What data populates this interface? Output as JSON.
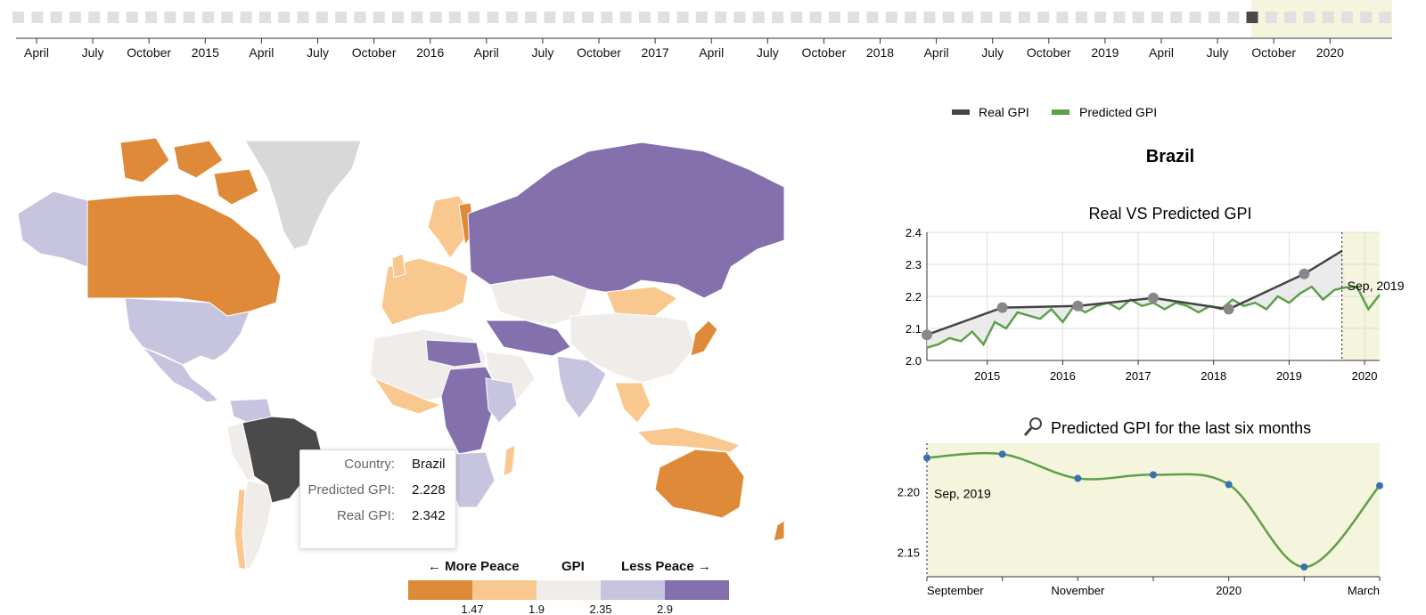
{
  "timeline": {
    "tick_labels": [
      "April",
      "July",
      "October",
      "2015",
      "April",
      "July",
      "October",
      "2016",
      "April",
      "July",
      "October",
      "2017",
      "April",
      "July",
      "October",
      "2018",
      "April",
      "July",
      "October",
      "2019",
      "April",
      "July",
      "October",
      "2020"
    ]
  },
  "map": {
    "tooltip": {
      "country_label": "Country:",
      "country": "Brazil",
      "predicted_label": "Predicted GPI:",
      "predicted": "2.228",
      "real_label": "Real GPI:",
      "real": "2.342"
    },
    "legend": {
      "more_peace": "← More Peace",
      "title": "GPI",
      "less_peace": "Less Peace →",
      "colors": [
        "#de8a38",
        "#f9c88f",
        "#f0ecea",
        "#c7c4e0",
        "#8370ad"
      ],
      "tick_labels": [
        "1.47",
        "1.9",
        "2.35",
        "2.9"
      ]
    },
    "colors": {
      "highlight": "#4a4a4a",
      "no_data": "#d8d8d8"
    }
  },
  "legend": {
    "real": "Real GPI",
    "predicted": "Predicted GPI"
  },
  "panel": {
    "country": "Brazil",
    "chart1_title": "Real VS Predicted GPI",
    "chart2_title": "Predicted GPI for the last six months",
    "chart2_icon": "magnifier-icon"
  },
  "chart_data": [
    {
      "type": "line",
      "title": "Real VS Predicted GPI",
      "xlabel": "",
      "ylabel": "",
      "x_ticks": [
        "2015",
        "2016",
        "2017",
        "2018",
        "2019",
        "2020"
      ],
      "y_ticks": [
        "2.0",
        "2.1",
        "2.2",
        "2.3",
        "2.4"
      ],
      "ylim": [
        2.0,
        2.4
      ],
      "xlim": [
        2014.2,
        2020.2
      ],
      "grid": true,
      "annotation": "Sep, 2019",
      "series": [
        {
          "name": "Real GPI",
          "color": "#444444",
          "x": [
            2014.2,
            2015.2,
            2016.2,
            2017.2,
            2018.2,
            2019.2,
            2019.7
          ],
          "y": [
            2.08,
            2.165,
            2.17,
            2.195,
            2.16,
            2.27,
            2.342
          ]
        },
        {
          "name": "Predicted GPI",
          "color": "#5da04a",
          "x": [
            2014.2,
            2014.35,
            2014.5,
            2014.65,
            2014.8,
            2014.95,
            2015.1,
            2015.25,
            2015.4,
            2015.55,
            2015.7,
            2015.85,
            2016.0,
            2016.15,
            2016.3,
            2016.45,
            2016.6,
            2016.75,
            2016.9,
            2017.05,
            2017.2,
            2017.35,
            2017.5,
            2017.65,
            2017.8,
            2017.95,
            2018.1,
            2018.25,
            2018.4,
            2018.55,
            2018.7,
            2018.85,
            2019.0,
            2019.15,
            2019.3,
            2019.45,
            2019.6,
            2019.75,
            2019.9,
            2020.05,
            2020.2
          ],
          "y": [
            2.04,
            2.05,
            2.07,
            2.06,
            2.09,
            2.05,
            2.12,
            2.1,
            2.15,
            2.14,
            2.13,
            2.16,
            2.12,
            2.17,
            2.15,
            2.17,
            2.18,
            2.16,
            2.19,
            2.17,
            2.18,
            2.16,
            2.18,
            2.17,
            2.15,
            2.17,
            2.16,
            2.19,
            2.17,
            2.18,
            2.16,
            2.2,
            2.18,
            2.21,
            2.23,
            2.19,
            2.22,
            2.228,
            2.23,
            2.16,
            2.205
          ]
        }
      ]
    },
    {
      "type": "line",
      "title": "Predicted GPI for the last six months",
      "x_ticks": [
        "September",
        "November",
        "2020",
        "March"
      ],
      "y_ticks": [
        "2.15",
        "2.20"
      ],
      "ylim": [
        2.13,
        2.24
      ],
      "annotation": "Sep, 2019",
      "series": [
        {
          "name": "Predicted GPI",
          "color": "#5da04a",
          "x": [
            "2019-09",
            "2019-10",
            "2019-11",
            "2019-12",
            "2020-01",
            "2020-02",
            "2020-03"
          ],
          "y": [
            2.228,
            2.231,
            2.211,
            2.214,
            2.206,
            2.138,
            2.205
          ]
        }
      ]
    }
  ]
}
